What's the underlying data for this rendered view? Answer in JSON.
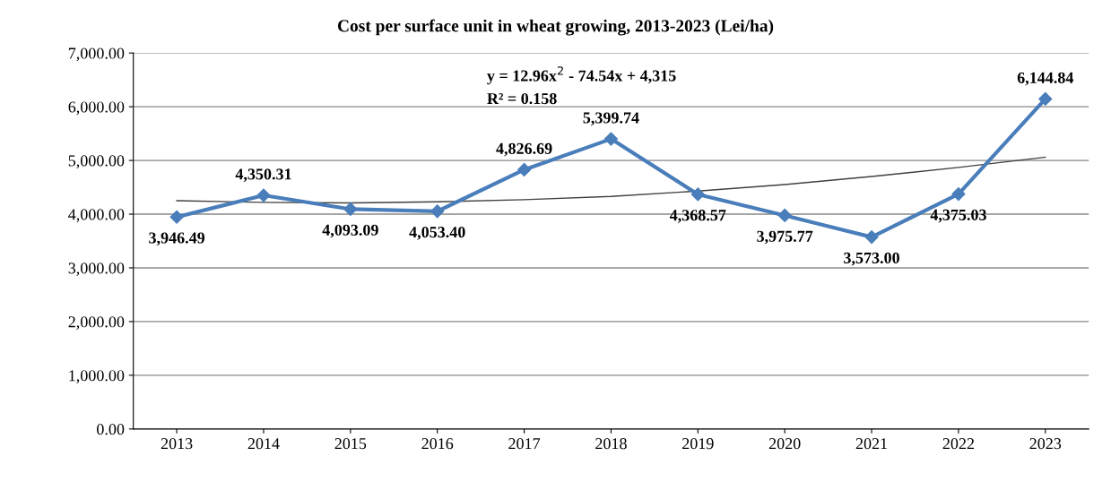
{
  "chart_data": {
    "type": "line",
    "title": "Cost per surface unit in wheat growing, 2013-2023 (Lei/ha)",
    "categories": [
      "2013",
      "2014",
      "2015",
      "2016",
      "2017",
      "2018",
      "2019",
      "2020",
      "2021",
      "2022",
      "2023"
    ],
    "series": [
      {
        "color": "#4a7ebb",
        "marker": "diamond",
        "values": [
          3946.49,
          4350.31,
          4093.09,
          4053.4,
          4826.69,
          5399.74,
          4368.57,
          3975.77,
          3573.0,
          4375.03,
          6144.84
        ],
        "value_labels": [
          "3,946.49",
          "4,350.31",
          "4,093.09",
          "4,053.40",
          "4,826.69",
          "5,399.74",
          "4,368.57",
          "3,975.77",
          "3,573.00",
          "4,375.03",
          "6,144.84"
        ]
      },
      {
        "type": "line",
        "color": "#404040",
        "marker": "none",
        "values": [
          4250,
          4220,
          4210,
          4230,
          4270,
          4330,
          4430,
          4550,
          4700,
          4870,
          5060
        ]
      }
    ],
    "annotations": [
      "y = 12.96x$^{2}$ - 74.54x + 4,315",
      "R² = 0.158"
    ],
    "ylim": [
      0,
      7000
    ],
    "yticks": [
      {
        "value": 0,
        "label": "0.00"
      },
      {
        "value": 1000,
        "label": "1,000.00"
      },
      {
        "value": 2000,
        "label": "2,000.00"
      },
      {
        "value": 3000,
        "label": "3,000.00"
      },
      {
        "value": 4000,
        "label": "4,000.00"
      },
      {
        "value": 5000,
        "label": "5,000.00"
      },
      {
        "value": 6000,
        "label": "6,000.00"
      },
      {
        "value": 7000,
        "label": "7,000.00"
      }
    ],
    "grid": "y"
  }
}
